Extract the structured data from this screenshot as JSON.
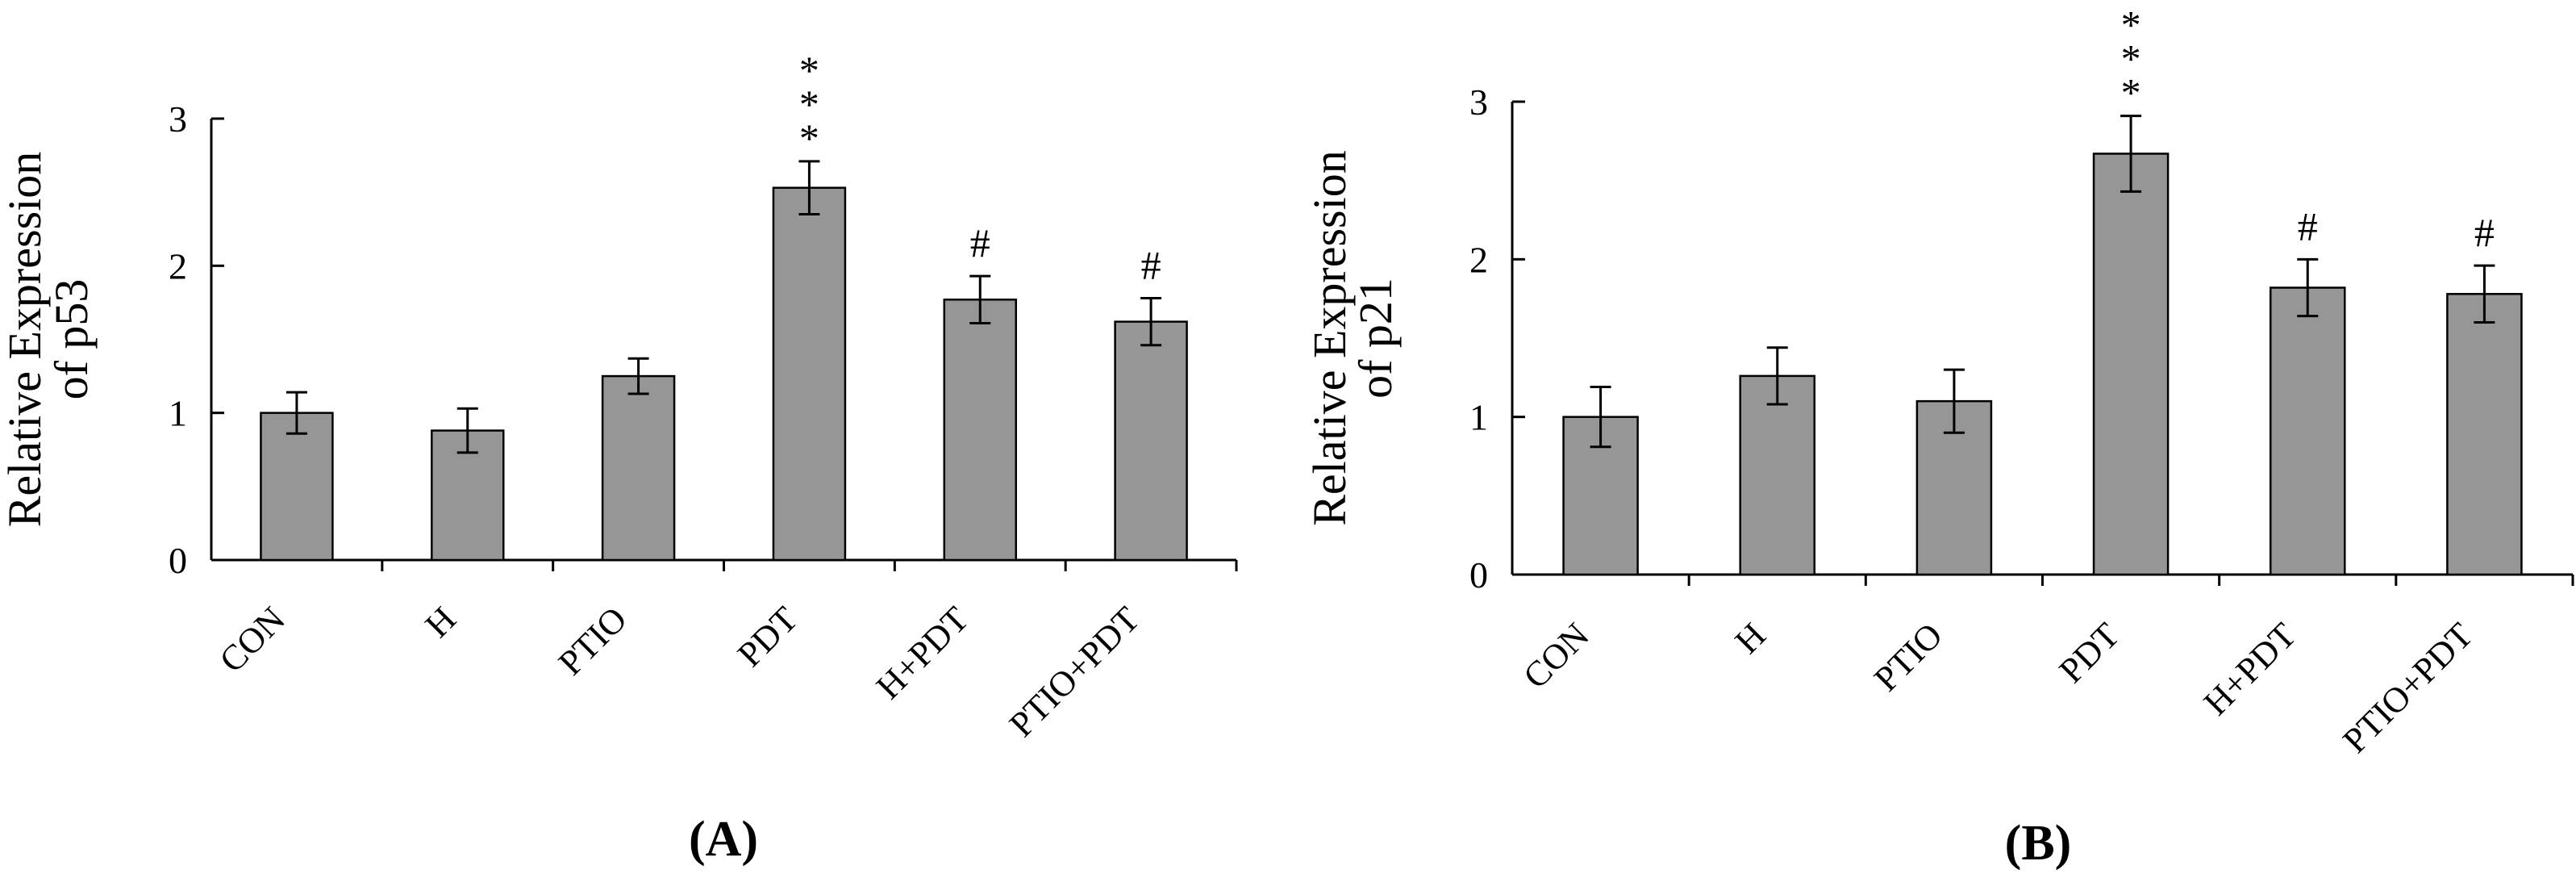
{
  "chart_data": [
    {
      "type": "bar",
      "panel_label": "(A)",
      "ylabel_line1": "Relative Expression",
      "ylabel_line2": "of  p53",
      "categories": [
        "CON",
        "H",
        "PTIO",
        "PDT",
        "H+PDT",
        "PTIO+PDT"
      ],
      "values": [
        1.0,
        0.88,
        1.25,
        2.53,
        1.77,
        1.62
      ],
      "errors": [
        0.14,
        0.15,
        0.12,
        0.18,
        0.16,
        0.16
      ],
      "annotations": [
        "",
        "",
        "",
        "***",
        "#",
        "#"
      ],
      "ylim": [
        0,
        3
      ],
      "yticks": [
        "0",
        "1",
        "2",
        "3"
      ],
      "grid": false
    },
    {
      "type": "bar",
      "panel_label": "(B)",
      "ylabel_line1": "Relative Expression",
      "ylabel_line2": "of  p21",
      "categories": [
        "CON",
        "H",
        "PTIO",
        "PDT",
        "H+PDT",
        "PTIO+PDT"
      ],
      "values": [
        1.0,
        1.26,
        1.1,
        2.67,
        1.82,
        1.78
      ],
      "errors": [
        0.19,
        0.18,
        0.2,
        0.24,
        0.18,
        0.18
      ],
      "annotations": [
        "",
        "",
        "",
        "***",
        "#",
        "#"
      ],
      "ylim": [
        0,
        3
      ],
      "yticks": [
        "0",
        "1",
        "2",
        "3"
      ],
      "grid": false
    }
  ]
}
